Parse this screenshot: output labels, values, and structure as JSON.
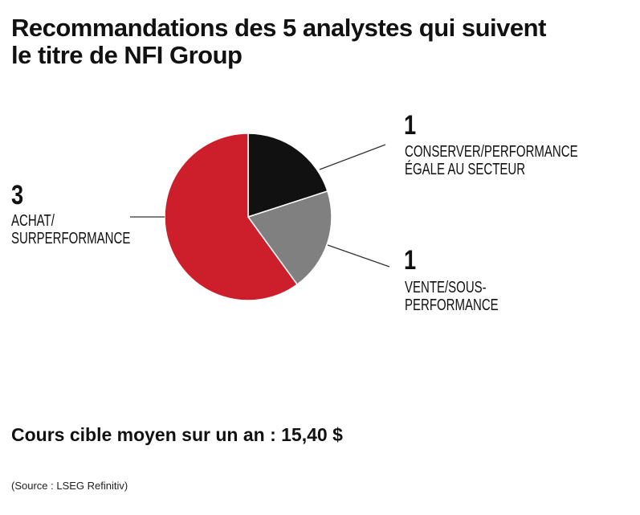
{
  "title_lines": [
    "Recommandations des 5 analystes qui suivent",
    "le titre de NFI Group"
  ],
  "chart_data": {
    "type": "pie",
    "title": "Recommandations des 5 analystes qui suivent le titre de NFI Group",
    "slices": [
      {
        "count": "1",
        "value": 1,
        "label_lines": [
          "CONSERVER/PERFORMANCE",
          "ÉGALE AU SECTEUR"
        ],
        "color": "#111111"
      },
      {
        "count": "1",
        "value": 1,
        "label_lines": [
          "VENTE/SOUS-",
          "PERFORMANCE"
        ],
        "color": "#808080"
      },
      {
        "count": "3",
        "value": 3,
        "label_lines": [
          "ACHAT/",
          "SURPERFORMANCE"
        ],
        "color": "#cc1f2b"
      }
    ]
  },
  "target_price": "Cours cible moyen sur un an : 15,40 $",
  "source": "(Source : LSEG Refinitiv)"
}
